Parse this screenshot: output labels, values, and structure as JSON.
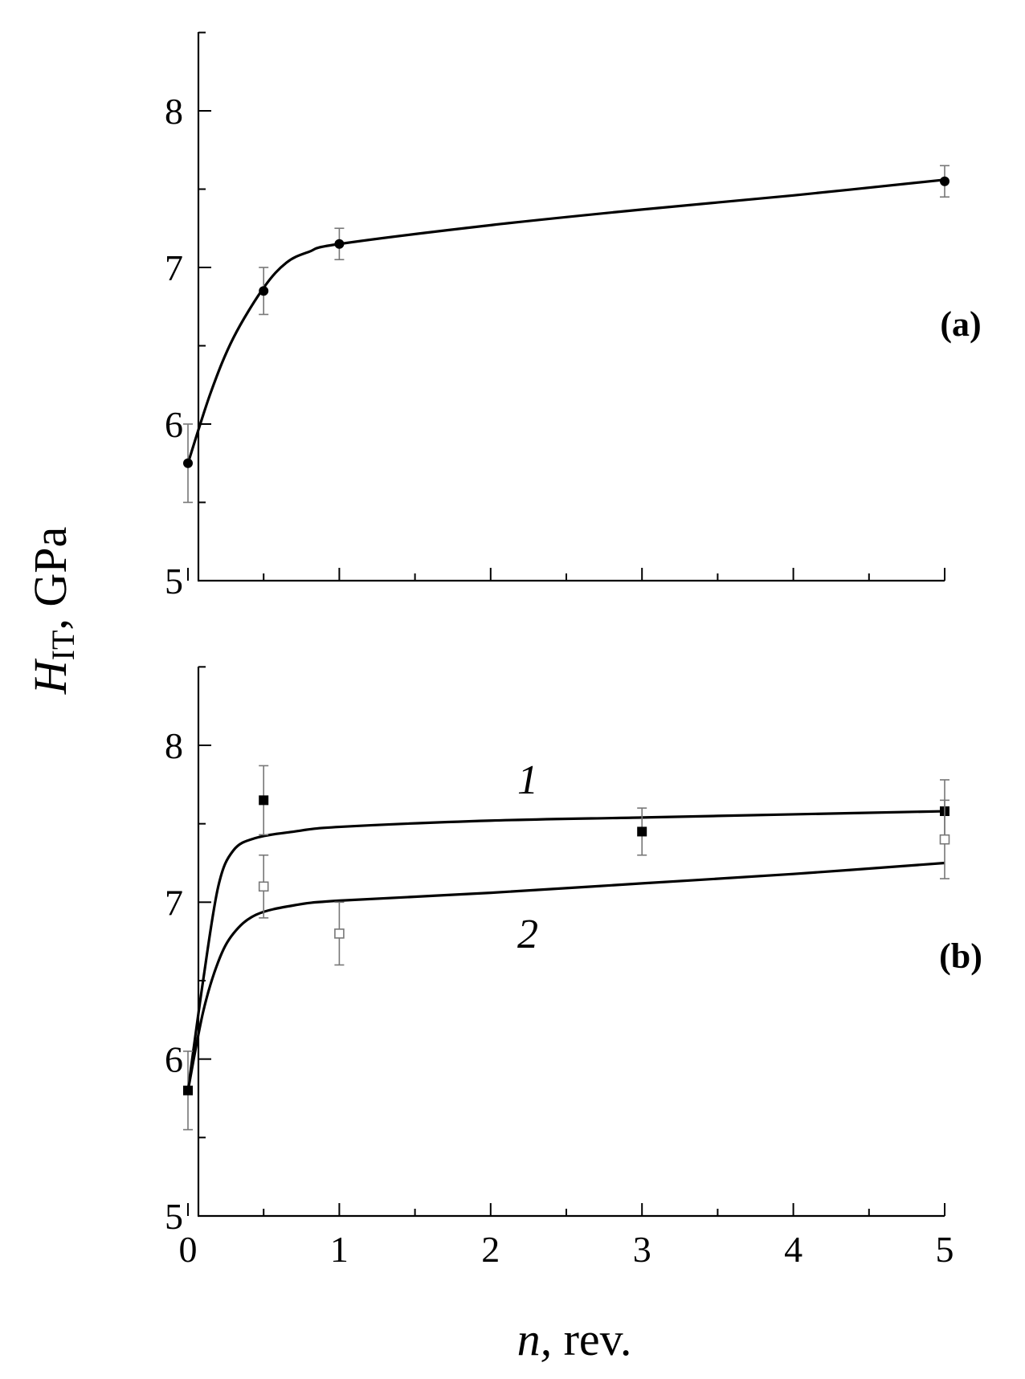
{
  "chart_data": [
    {
      "type": "scatter",
      "panel_label": "(a)",
      "x_ticks": [
        "0",
        "1",
        "2",
        "3",
        "4",
        "5"
      ],
      "y_ticks": [
        "5",
        "6",
        "7",
        "8"
      ],
      "xlim": [
        0,
        5
      ],
      "ylim": [
        5,
        8.5
      ],
      "series": [
        {
          "marker": "filled-circle",
          "points": [
            {
              "x": 0,
              "y": 5.75,
              "err": 0.25
            },
            {
              "x": 0.5,
              "y": 6.85,
              "err": 0.15
            },
            {
              "x": 1,
              "y": 7.15,
              "err": 0.1
            },
            {
              "x": 5,
              "y": 7.55,
              "err": 0.1
            }
          ],
          "fit": [
            [
              0,
              5.75
            ],
            [
              0.15,
              6.2
            ],
            [
              0.3,
              6.55
            ],
            [
              0.5,
              6.87
            ],
            [
              0.65,
              7.03
            ],
            [
              0.8,
              7.1
            ],
            [
              1,
              7.15
            ],
            [
              2,
              7.27
            ],
            [
              3,
              7.37
            ],
            [
              4,
              7.46
            ],
            [
              5,
              7.56
            ]
          ]
        }
      ]
    },
    {
      "type": "scatter",
      "panel_label": "(b)",
      "x_ticks": [
        "0",
        "1",
        "2",
        "3",
        "4",
        "5"
      ],
      "y_ticks": [
        "5",
        "6",
        "7",
        "8"
      ],
      "xlim": [
        0,
        5
      ],
      "ylim": [
        5,
        8.5
      ],
      "series": [
        {
          "name": "1",
          "marker": "filled-square",
          "points": [
            {
              "x": 0,
              "y": 5.8,
              "err": 0.25
            },
            {
              "x": 0.5,
              "y": 7.65,
              "err": 0.22
            },
            {
              "x": 3,
              "y": 7.45,
              "err": 0.15
            },
            {
              "x": 5,
              "y": 7.58,
              "err": 0.2
            }
          ],
          "fit": [
            [
              0,
              5.8
            ],
            [
              0.1,
              6.5
            ],
            [
              0.2,
              7.1
            ],
            [
              0.3,
              7.33
            ],
            [
              0.45,
              7.41
            ],
            [
              0.7,
              7.45
            ],
            [
              1,
              7.48
            ],
            [
              2,
              7.52
            ],
            [
              3,
              7.54
            ],
            [
              4,
              7.56
            ],
            [
              5,
              7.58
            ]
          ]
        },
        {
          "name": "2",
          "marker": "open-square",
          "points": [
            {
              "x": 0.5,
              "y": 7.1,
              "err": 0.2
            },
            {
              "x": 1,
              "y": 6.8,
              "err": 0.2
            },
            {
              "x": 5,
              "y": 7.4,
              "err": 0.25
            }
          ],
          "fit": [
            [
              0,
              5.8
            ],
            [
              0.1,
              6.3
            ],
            [
              0.2,
              6.62
            ],
            [
              0.3,
              6.8
            ],
            [
              0.45,
              6.92
            ],
            [
              0.7,
              6.98
            ],
            [
              1,
              7.01
            ],
            [
              2,
              7.06
            ],
            [
              3,
              7.12
            ],
            [
              4,
              7.18
            ],
            [
              5,
              7.25
            ]
          ]
        }
      ]
    }
  ],
  "ylabel_main": "H",
  "ylabel_sub": "IT",
  "ylabel_rest": ", GPa",
  "xlabel_var": "n,",
  "xlabel_rest": " rev."
}
